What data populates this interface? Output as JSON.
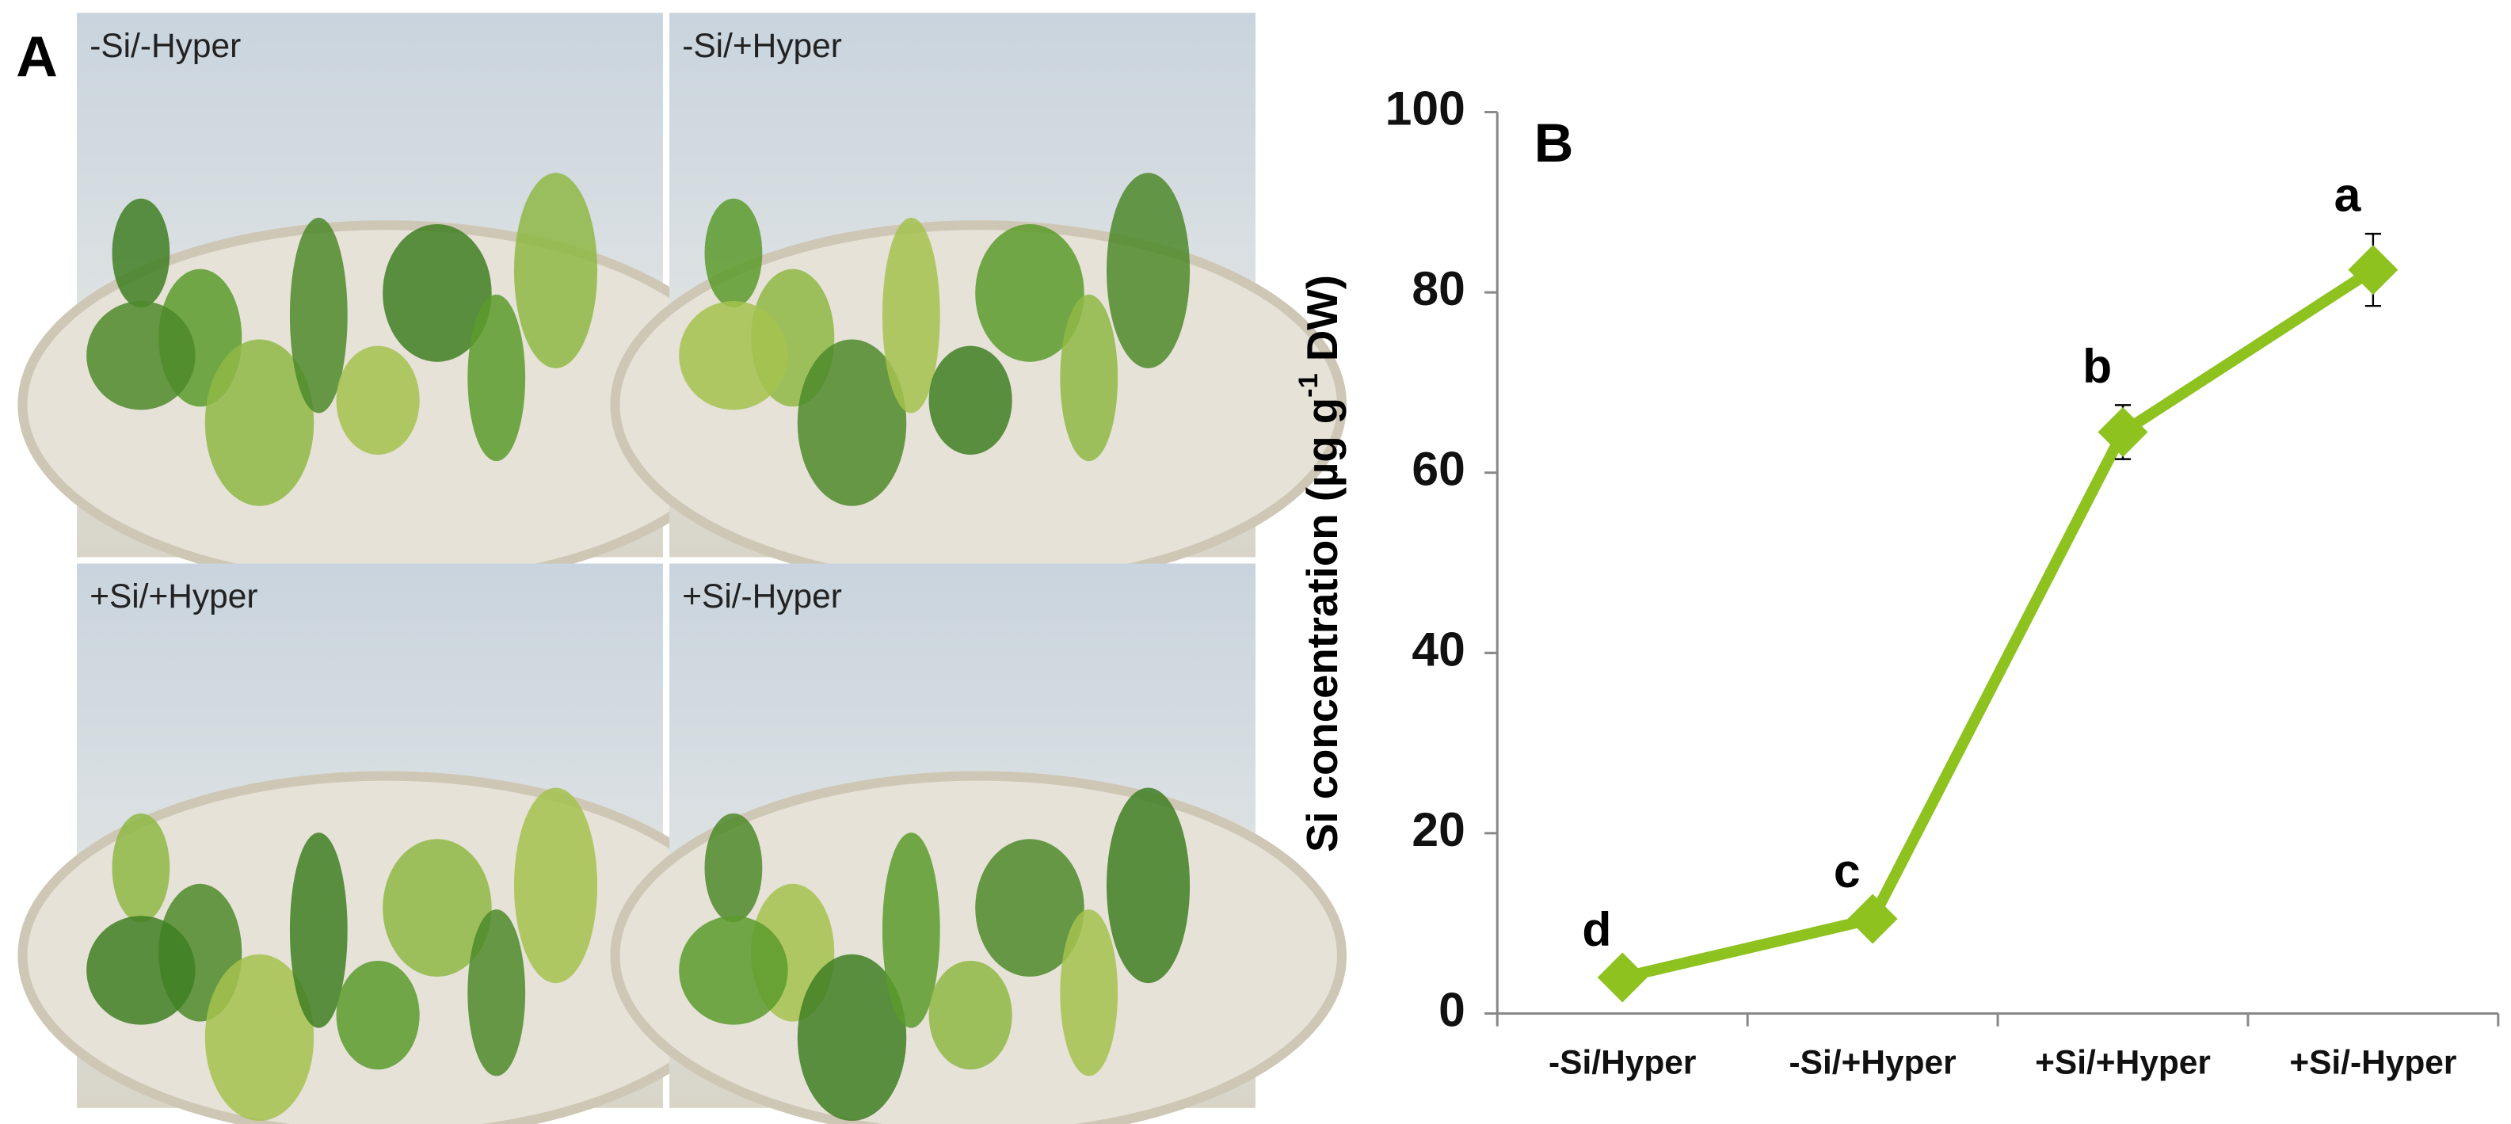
{
  "panel_a": {
    "label": "A",
    "photos": [
      "-Si/-Hyper",
      "-Si/+Hyper",
      "+Si/+Hyper",
      "+Si/-Hyper"
    ]
  },
  "chart_data": {
    "type": "line",
    "panel_label": "B",
    "y_label": {
      "before": "Si concentration  (µg g",
      "superscript": "-1",
      "after": " DW)"
    },
    "categories": [
      "-Si/Hyper",
      "-Si/+Hyper",
      "+Si/+Hyper",
      "+Si/-Hyper"
    ],
    "values": [
      4,
      10.5,
      64.5,
      82.5
    ],
    "errors": [
      1,
      1,
      3,
      4
    ],
    "annotations": [
      "d",
      "c",
      "b",
      "a"
    ],
    "color": "#8dc21f",
    "ylim": [
      0,
      100
    ],
    "yticks": [
      0,
      20,
      40,
      60,
      80,
      100
    ]
  }
}
